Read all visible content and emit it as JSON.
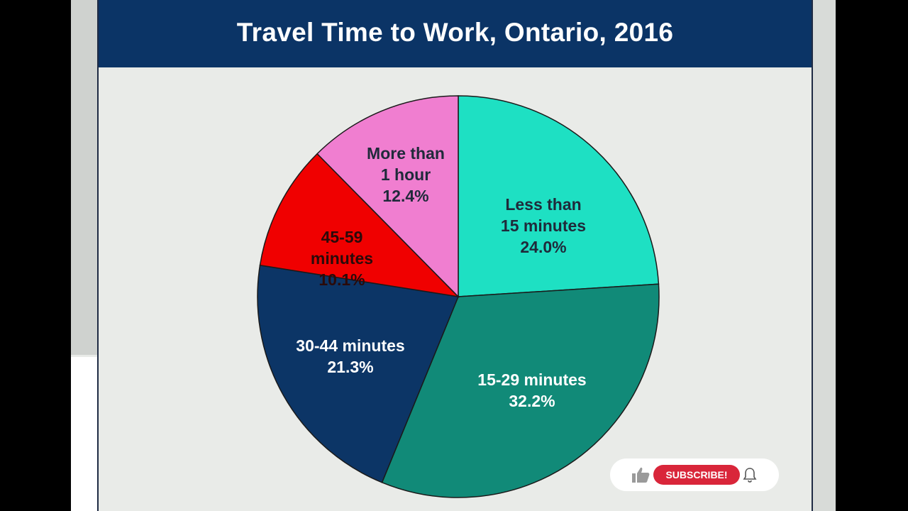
{
  "header": {
    "title": "Travel Time to Work, Ontario, 2016"
  },
  "chart_data": {
    "type": "pie",
    "title": "Travel Time to Work, Ontario, 2016",
    "slices": [
      {
        "lines": [
          "Less than",
          "15 minutes",
          "24.0%"
        ],
        "value": 24.0,
        "color": "#1ee0c3",
        "text_color": "#1f2a3a"
      },
      {
        "lines": [
          "15-29 minutes",
          "32.2%"
        ],
        "value": 32.2,
        "color": "#118a78",
        "text_color": "#ffffff"
      },
      {
        "lines": [
          "30-44 minutes",
          "21.3%"
        ],
        "value": 21.3,
        "color": "#0c3566",
        "text_color": "#ffffff"
      },
      {
        "lines": [
          "45-59",
          "minutes",
          "10.1%"
        ],
        "value": 10.1,
        "color": "#f00000",
        "text_color": "#2a0a0a"
      },
      {
        "lines": [
          "More than",
          "1 hour",
          "12.4%"
        ],
        "value": 12.4,
        "color": "#f07ed0",
        "text_color": "#1f2a3a"
      }
    ],
    "start_angle_deg": 0,
    "direction": "clockwise",
    "legend": "none"
  },
  "overlay": {
    "subscribe_label": "SUBSCRIBE!",
    "like_icon": "thumbs-up-icon",
    "bell_icon": "bell-icon"
  }
}
